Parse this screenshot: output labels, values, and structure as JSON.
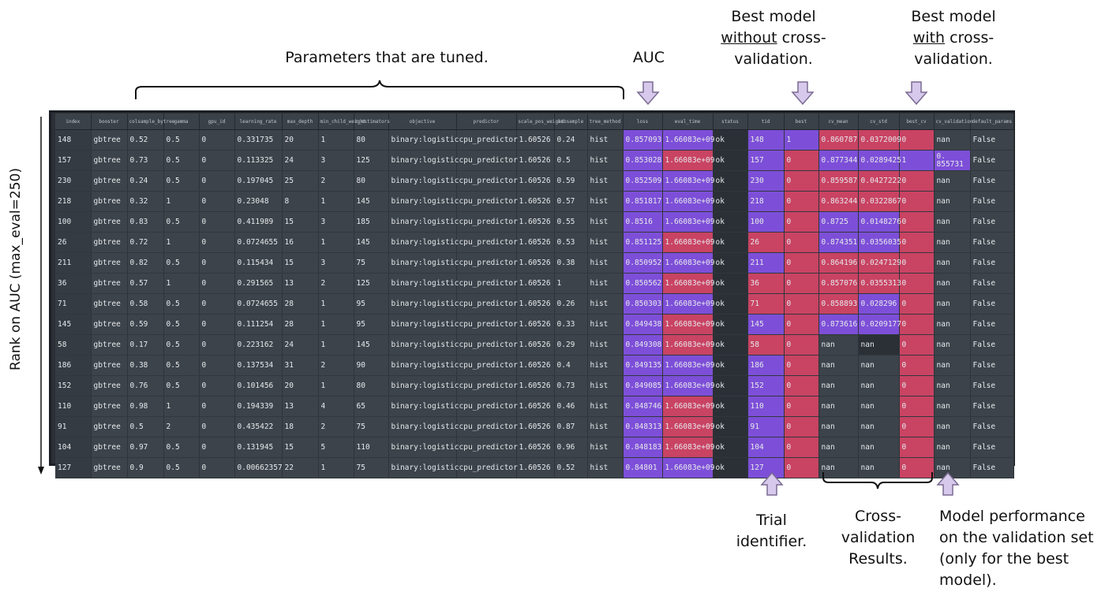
{
  "annotations": {
    "params_tuned": "Parameters that are tuned.",
    "auc": "AUC",
    "best_without_cv": {
      "line1": "Best model",
      "line2_u": "without",
      "line2_rest": " cross-",
      "line3": "validation."
    },
    "best_with_cv": {
      "line1": "Best model",
      "line2_u": "with",
      "line2_rest": " cross-",
      "line3": "validation."
    },
    "trial_identifier": {
      "line1": "Trial",
      "line2": "identifier."
    },
    "cv_results": {
      "line1": "Cross-",
      "line2": "validation",
      "line3": "Results."
    },
    "model_perf": {
      "line1": "Model performance",
      "line2": "on the validation set",
      "line3": "(only for the best",
      "line4": "model)."
    },
    "rank_label": "Rank on AUC (max_eval=250)"
  },
  "colors": {
    "purple": "#7d4fd8",
    "red": "#c94363",
    "cell": "#3c434a",
    "panel": "#2b3036",
    "arrow_fill": "#d6c9ec",
    "arrow_stroke": "#7a6a92"
  },
  "table": {
    "headers": [
      "index",
      "booster",
      "colsample_bytree",
      "gamma",
      "gpu_id",
      "learning_rate",
      "max_depth",
      "min_child_weight",
      "n_estimators",
      "objective",
      "predictor",
      "scale_pos_weight",
      "subsample",
      "tree_method",
      "loss",
      "eval_time",
      "status",
      "tid",
      "best",
      "cv_mean",
      "cv_std",
      "best_cv",
      "cv_validation",
      "default_params"
    ],
    "rows": [
      [
        "148",
        "gbtree",
        "0.52",
        "0.5",
        "0",
        "0.331735",
        "20",
        "1",
        "80",
        "binary:logistic",
        "cpu_predictor",
        "1.60526",
        "0.24",
        "hist",
        "0.857093",
        "1.66083e+09",
        "ok",
        "148",
        "1",
        "0.860787",
        "0.0372009",
        "0",
        "nan",
        "False"
      ],
      [
        "157",
        "gbtree",
        "0.73",
        "0.5",
        "0",
        "0.113325",
        "24",
        "3",
        "125",
        "binary:logistic",
        "cpu_predictor",
        "1.60526",
        "0.5",
        "hist",
        "0.853028",
        "1.66083e+09",
        "ok",
        "157",
        "0",
        "0.877344",
        "0.0289425",
        "1",
        "0. 855731",
        "False"
      ],
      [
        "230",
        "gbtree",
        "0.24",
        "0.5",
        "0",
        "0.197045",
        "25",
        "2",
        "80",
        "binary:logistic",
        "cpu_predictor",
        "1.60526",
        "0.59",
        "hist",
        "0.852509",
        "1.66083e+09",
        "ok",
        "230",
        "0",
        "0.859587",
        "0.0427222",
        "0",
        "nan",
        "False"
      ],
      [
        "218",
        "gbtree",
        "0.32",
        "1",
        "0",
        "0.23048",
        "8",
        "1",
        "145",
        "binary:logistic",
        "cpu_predictor",
        "1.60526",
        "0.57",
        "hist",
        "0.851817",
        "1.66083e+09",
        "ok",
        "218",
        "0",
        "0.863244",
        "0.0322867",
        "0",
        "nan",
        "False"
      ],
      [
        "100",
        "gbtree",
        "0.83",
        "0.5",
        "0",
        "0.411989",
        "15",
        "3",
        "185",
        "binary:logistic",
        "cpu_predictor",
        "1.60526",
        "0.55",
        "hist",
        "0.8516",
        "1.66083e+09",
        "ok",
        "100",
        "0",
        "0.8725",
        "0.0148276",
        "0",
        "nan",
        "False"
      ],
      [
        "26",
        "gbtree",
        "0.72",
        "1",
        "0",
        "0.0724655",
        "16",
        "1",
        "145",
        "binary:logistic",
        "cpu_predictor",
        "1.60526",
        "0.53",
        "hist",
        "0.851125",
        "1.66083e+09",
        "ok",
        "26",
        "0",
        "0.874351",
        "0.0356035",
        "0",
        "nan",
        "False"
      ],
      [
        "211",
        "gbtree",
        "0.82",
        "0.5",
        "0",
        "0.115434",
        "15",
        "3",
        "75",
        "binary:logistic",
        "cpu_predictor",
        "1.60526",
        "0.38",
        "hist",
        "0.850952",
        "1.66083e+09",
        "ok",
        "211",
        "0",
        "0.864196",
        "0.0247129",
        "0",
        "nan",
        "False"
      ],
      [
        "36",
        "gbtree",
        "0.57",
        "1",
        "0",
        "0.291565",
        "13",
        "2",
        "125",
        "binary:logistic",
        "cpu_predictor",
        "1.60526",
        "1",
        "hist",
        "0.850562",
        "1.66083e+09",
        "ok",
        "36",
        "0",
        "0.857076",
        "0.0355313",
        "0",
        "nan",
        "False"
      ],
      [
        "71",
        "gbtree",
        "0.58",
        "0.5",
        "0",
        "0.0724655",
        "28",
        "1",
        "95",
        "binary:logistic",
        "cpu_predictor",
        "1.60526",
        "0.26",
        "hist",
        "0.850303",
        "1.66083e+09",
        "ok",
        "71",
        "0",
        "0.858893",
        "0.028296",
        "0",
        "nan",
        "False"
      ],
      [
        "145",
        "gbtree",
        "0.59",
        "0.5",
        "0",
        "0.111254",
        "28",
        "1",
        "95",
        "binary:logistic",
        "cpu_predictor",
        "1.60526",
        "0.33",
        "hist",
        "0.849438",
        "1.66083e+09",
        "ok",
        "145",
        "0",
        "0.873616",
        "0.0209177",
        "0",
        "nan",
        "False"
      ],
      [
        "58",
        "gbtree",
        "0.17",
        "0.5",
        "0",
        "0.223162",
        "24",
        "1",
        "145",
        "binary:logistic",
        "cpu_predictor",
        "1.60526",
        "0.29",
        "hist",
        "0.849308",
        "1.66083e+09",
        "ok",
        "58",
        "0",
        "nan",
        "nan",
        "0",
        "nan",
        "False"
      ],
      [
        "186",
        "gbtree",
        "0.38",
        "0.5",
        "0",
        "0.137534",
        "31",
        "2",
        "90",
        "binary:logistic",
        "cpu_predictor",
        "1.60526",
        "0.4",
        "hist",
        "0.849135",
        "1.66083e+09",
        "ok",
        "186",
        "0",
        "nan",
        "nan",
        "0",
        "nan",
        "False"
      ],
      [
        "152",
        "gbtree",
        "0.76",
        "0.5",
        "0",
        "0.101456",
        "20",
        "1",
        "80",
        "binary:logistic",
        "cpu_predictor",
        "1.60526",
        "0.73",
        "hist",
        "0.849085",
        "1.66083e+09",
        "ok",
        "152",
        "0",
        "nan",
        "nan",
        "0",
        "nan",
        "False"
      ],
      [
        "110",
        "gbtree",
        "0.98",
        "1",
        "0",
        "0.194339",
        "13",
        "4",
        "65",
        "binary:logistic",
        "cpu_predictor",
        "1.60526",
        "0.46",
        "hist",
        "0.848746",
        "1.66083e+09",
        "ok",
        "110",
        "0",
        "nan",
        "nan",
        "0",
        "nan",
        "False"
      ],
      [
        "91",
        "gbtree",
        "0.5",
        "2",
        "0",
        "0.435422",
        "18",
        "2",
        "75",
        "binary:logistic",
        "cpu_predictor",
        "1.60526",
        "0.87",
        "hist",
        "0.848313",
        "1.66083e+09",
        "ok",
        "91",
        "0",
        "nan",
        "nan",
        "0",
        "nan",
        "False"
      ],
      [
        "104",
        "gbtree",
        "0.97",
        "0.5",
        "0",
        "0.131945",
        "15",
        "5",
        "110",
        "binary:logistic",
        "cpu_predictor",
        "1.60526",
        "0.96",
        "hist",
        "0.848183",
        "1.66083e+09",
        "ok",
        "104",
        "0",
        "nan",
        "nan",
        "0",
        "nan",
        "False"
      ],
      [
        "127",
        "gbtree",
        "0.9",
        "0.5",
        "0",
        "0.00662357",
        "22",
        "1",
        "75",
        "binary:logistic",
        "cpu_predictor",
        "1.60526",
        "0.52",
        "hist",
        "0.84801",
        "1.66083e+09",
        "ok",
        "127",
        "0",
        "nan",
        "nan",
        "0",
        "nan",
        "False"
      ]
    ]
  }
}
